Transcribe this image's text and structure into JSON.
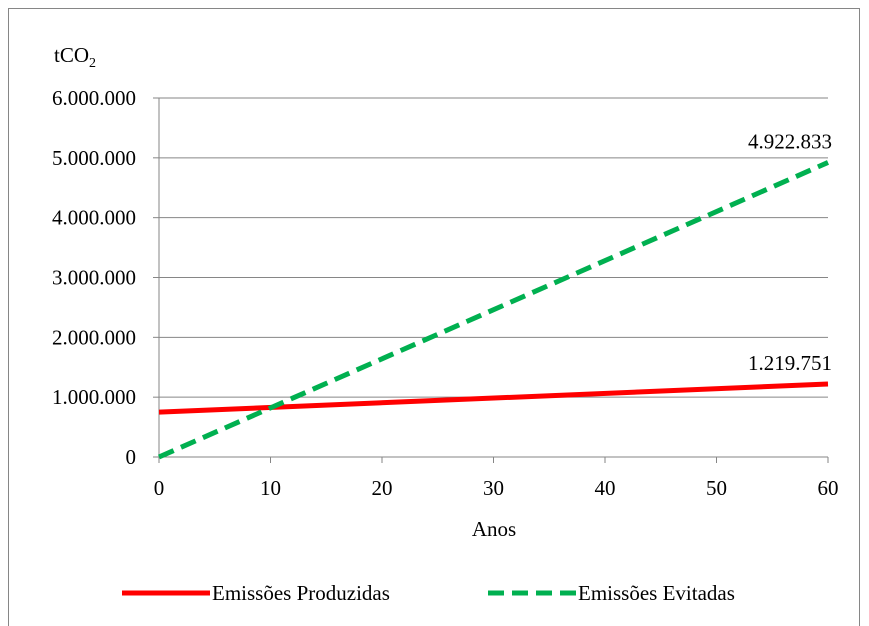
{
  "chart_data": {
    "type": "line",
    "ylabel_base": "tCO",
    "ylabel_sub": "2",
    "xlabel": "Anos",
    "xlim": [
      0,
      60
    ],
    "ylim": [
      0,
      6000000
    ],
    "x_ticks": [
      "0",
      "10",
      "20",
      "30",
      "40",
      "50",
      "60"
    ],
    "y_ticks": [
      "0",
      "1.000.000",
      "2.000.000",
      "3.000.000",
      "4.000.000",
      "5.000.000",
      "6.000.000"
    ],
    "grid": "horizontal",
    "legend_position": "bottom",
    "series": [
      {
        "name": "Emissões Produzidas",
        "color": "#ff0000",
        "style": "solid",
        "x": [
          0,
          60
        ],
        "values": [
          750000,
          1219751
        ],
        "end_label": "1.219.751"
      },
      {
        "name": "Emissões Evitadas",
        "color": "#00b050",
        "style": "dashed",
        "x": [
          0,
          60
        ],
        "values": [
          0,
          4922833
        ],
        "end_label": "4.922.833"
      }
    ]
  }
}
